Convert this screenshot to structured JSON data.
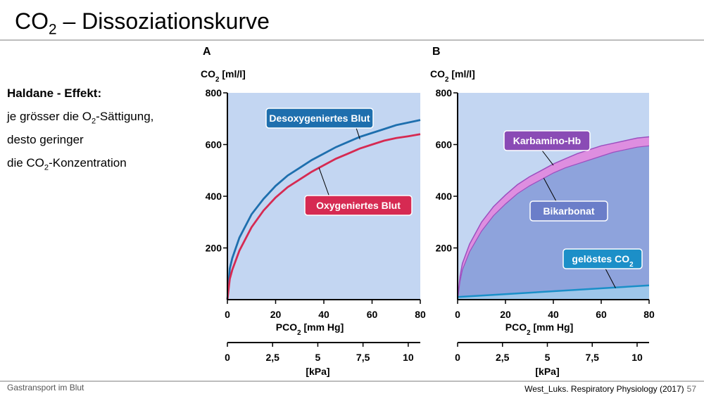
{
  "slide": {
    "title_main": "CO",
    "title_sub": "2",
    "title_rest": " – Dissoziationskurve",
    "left_heading": "Haldane - Effekt:",
    "left_line1_a": "je grösser die O",
    "left_line1_sub": "2",
    "left_line1_b": "-Sättigung,",
    "left_line2": "desto geringer",
    "left_line3_a": "die CO",
    "left_line3_sub": "2",
    "left_line3_b": "-Konzentration",
    "footer_left": "Gastransport im Blut",
    "footer_right": "West_Luks. Respiratory Physiology (2017)",
    "page_number": "57"
  },
  "colors": {
    "panel_bg": "#c3d6f2",
    "desoxy": "#1e6fae",
    "oxy": "#d62a52",
    "karbamino": "#de8ee0",
    "karbamino_label": "#8a4bb5",
    "bikarbonat_fill": "#8ea3dc",
    "bikarbonat_label": "#6b7ec9",
    "geloestes_fill": "#9ec6ea",
    "geloestes_line": "#1a8fc8",
    "geloestes_label": "#1c8fc8",
    "axis": "#000000"
  },
  "chart_data": [
    {
      "type": "line",
      "panel_label": "A",
      "ylabel_main": "CO",
      "ylabel_sub": "2",
      "ylabel_rest": " [ml/l]",
      "xlabel_main": "PCO",
      "xlabel_sub": "2",
      "xlabel_rest": " [mm Hg]",
      "x2label": "[kPa]",
      "xlim": [
        0,
        80
      ],
      "ylim": [
        0,
        800
      ],
      "yticks": [
        200,
        400,
        600,
        800
      ],
      "xticks": [
        0,
        20,
        40,
        60,
        80
      ],
      "kpa_ticks": [
        "0",
        "2,5",
        "5",
        "7,5",
        "10"
      ],
      "kpa_values": [
        0,
        2.5,
        5,
        7.5,
        10
      ],
      "series": [
        {
          "name": "Desoxygeniertes Blut",
          "x": [
            0,
            1,
            2,
            5,
            10,
            15,
            20,
            25,
            30,
            35,
            40,
            45,
            50,
            55,
            60,
            65,
            70,
            75,
            80
          ],
          "y": [
            0,
            120,
            160,
            240,
            330,
            390,
            440,
            480,
            510,
            540,
            565,
            590,
            610,
            630,
            645,
            660,
            675,
            685,
            695
          ]
        },
        {
          "name": "Oxygeniertes Blut",
          "x": [
            0,
            1,
            2,
            5,
            10,
            15,
            20,
            25,
            30,
            35,
            40,
            45,
            50,
            55,
            60,
            65,
            70,
            75,
            80
          ],
          "y": [
            0,
            80,
            115,
            190,
            280,
            345,
            395,
            435,
            465,
            495,
            520,
            545,
            565,
            585,
            600,
            615,
            625,
            632,
            640
          ]
        }
      ]
    },
    {
      "type": "area",
      "panel_label": "B",
      "ylabel_main": "CO",
      "ylabel_sub": "2",
      "ylabel_rest": " [ml/l]",
      "xlabel_main": "PCO",
      "xlabel_sub": "2",
      "xlabel_rest": " [mm Hg]",
      "x2label": "[kPa]",
      "xlim": [
        0,
        80
      ],
      "ylim": [
        0,
        800
      ],
      "yticks": [
        200,
        400,
        600,
        800
      ],
      "xticks": [
        0,
        20,
        40,
        60,
        80
      ],
      "kpa_ticks": [
        "0",
        "2,5",
        "5",
        "7,5",
        "10"
      ],
      "kpa_values": [
        0,
        2.5,
        5,
        7.5,
        10
      ],
      "series": [
        {
          "name": "Karbamino-Hb",
          "x": [
            0,
            1,
            2,
            5,
            10,
            15,
            20,
            25,
            30,
            35,
            40,
            45,
            50,
            55,
            60,
            65,
            70,
            75,
            80
          ],
          "y": [
            0,
            90,
            140,
            215,
            300,
            360,
            405,
            445,
            475,
            500,
            525,
            545,
            565,
            580,
            595,
            605,
            615,
            625,
            630
          ]
        },
        {
          "name": "Bikarbonat",
          "x": [
            0,
            1,
            2,
            5,
            10,
            15,
            20,
            25,
            30,
            35,
            40,
            45,
            50,
            55,
            60,
            65,
            70,
            75,
            80
          ],
          "y": [
            0,
            70,
            115,
            185,
            265,
            325,
            370,
            410,
            440,
            465,
            490,
            510,
            525,
            540,
            555,
            570,
            580,
            590,
            595
          ]
        },
        {
          "name": "gelöstes CO",
          "name_sub": "2",
          "x": [
            0,
            80
          ],
          "y": [
            10,
            55
          ]
        }
      ]
    }
  ]
}
